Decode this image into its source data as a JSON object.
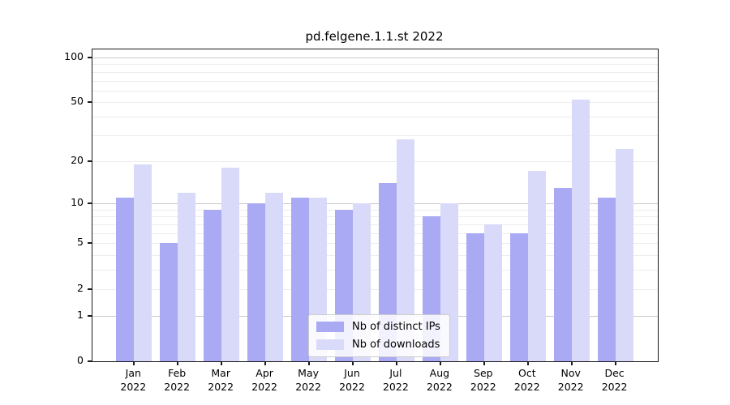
{
  "chart_data": {
    "type": "bar",
    "title": "pd.felgene.1.1.st 2022",
    "x_year": "2022",
    "x_months": [
      "Jan",
      "Feb",
      "Mar",
      "Apr",
      "May",
      "Jun",
      "Jul",
      "Aug",
      "Sep",
      "Oct",
      "Nov",
      "Dec"
    ],
    "series": [
      {
        "name": "Nb of distinct IPs",
        "color": "#a9a9f4",
        "values": [
          11,
          5,
          9,
          10,
          11,
          9,
          14,
          8,
          6,
          6,
          13,
          11
        ]
      },
      {
        "name": "Nb of downloads",
        "color": "#d9d9f9",
        "values": [
          19,
          12,
          18,
          12,
          11,
          10,
          28,
          10,
          7,
          17,
          52,
          24
        ]
      }
    ],
    "yscale": "log1p",
    "ylim": [
      0,
      113
    ],
    "yticks": [
      0,
      1,
      2,
      5,
      10,
      20,
      50,
      100
    ],
    "grid": {
      "major": [
        1,
        10,
        100
      ],
      "minor": [
        2,
        3,
        4,
        5,
        6,
        7,
        8,
        9,
        20,
        30,
        40,
        50,
        60,
        70,
        80,
        90
      ],
      "major_color": "#c9c9c9",
      "minor_color": "#ededed"
    },
    "legend_position": "lower center",
    "axis_color": "#1a1a1a"
  }
}
